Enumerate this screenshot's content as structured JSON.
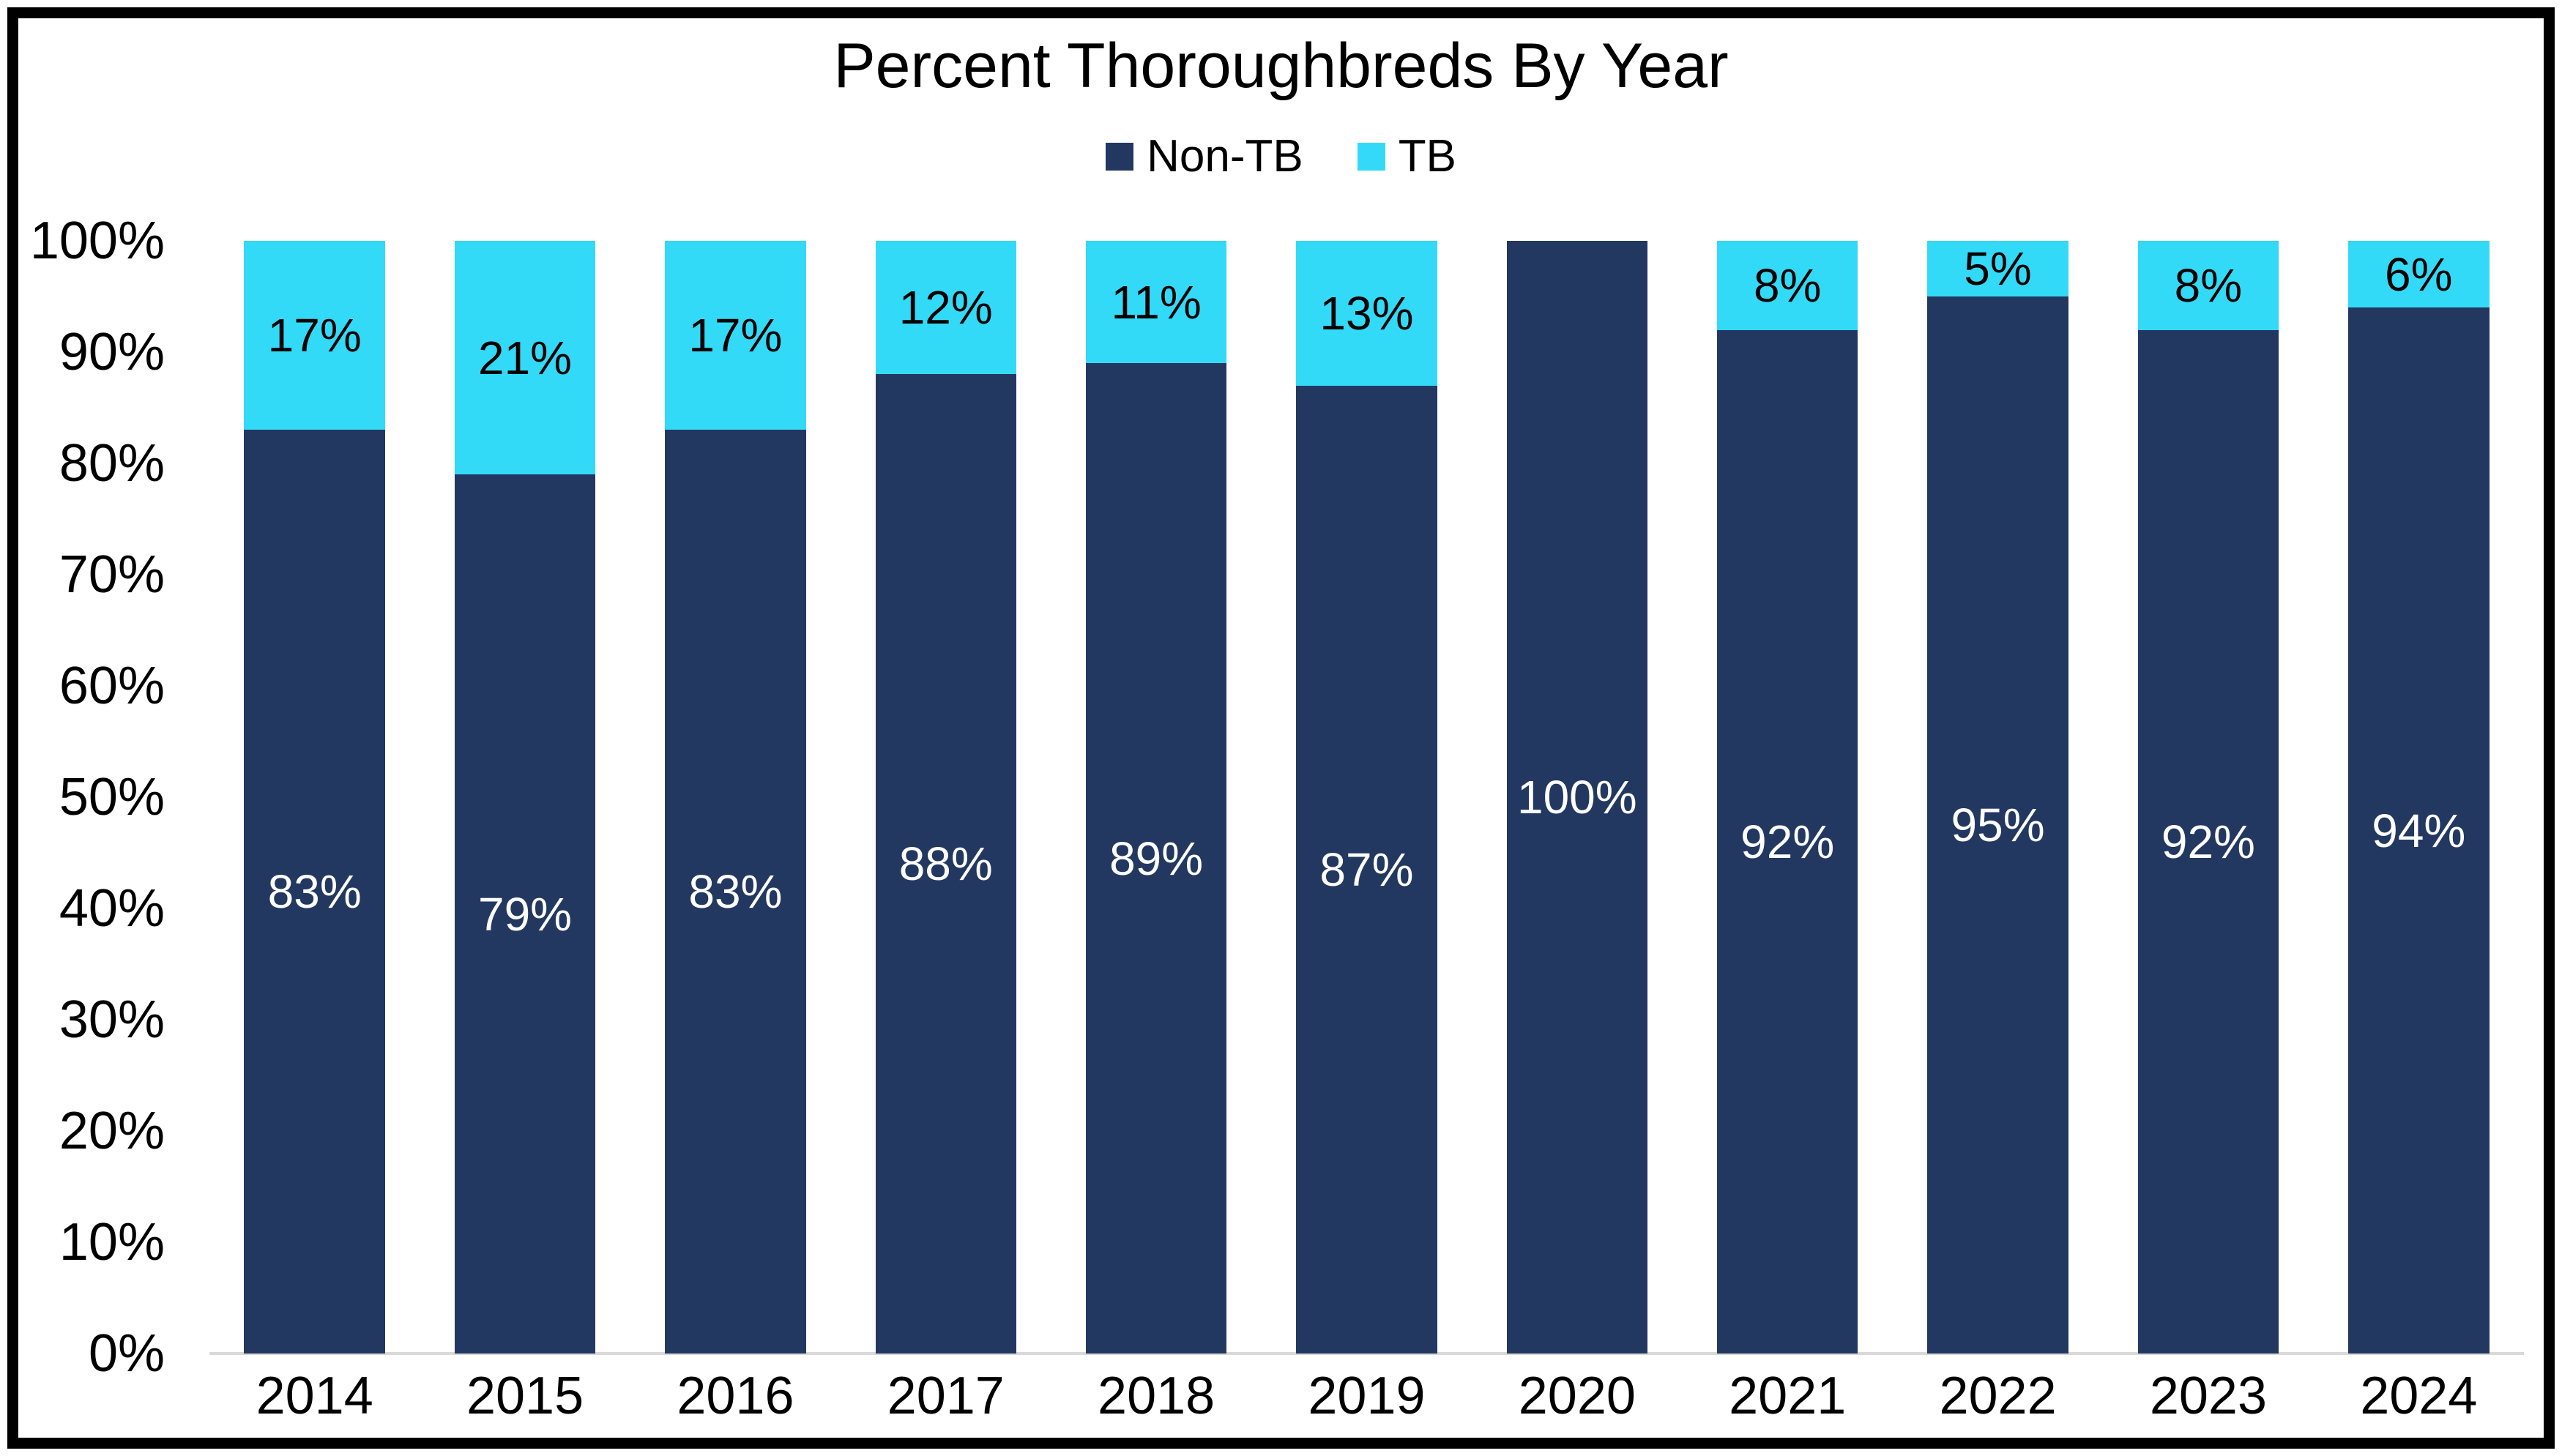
{
  "chart_data": {
    "type": "bar",
    "stacked": true,
    "title": "Percent Thoroughbreds By Year",
    "categories": [
      "2014",
      "2015",
      "2016",
      "2017",
      "2018",
      "2019",
      "2020",
      "2021",
      "2022",
      "2023",
      "2024"
    ],
    "series": [
      {
        "name": "Non-TB",
        "color": "#233860",
        "label_color": "#ffffff",
        "values": [
          83,
          79,
          83,
          88,
          89,
          87,
          100,
          92,
          95,
          92,
          94
        ],
        "labels": [
          "83%",
          "79%",
          "83%",
          "88%",
          "89%",
          "87%",
          "100%",
          "92%",
          "95%",
          "92%",
          "94%"
        ]
      },
      {
        "name": "TB",
        "color": "#33daf7",
        "label_color": "#000000",
        "values": [
          17,
          21,
          17,
          12,
          11,
          13,
          0,
          8,
          5,
          8,
          6
        ],
        "labels": [
          "17%",
          "21%",
          "17%",
          "12%",
          "11%",
          "13%",
          "",
          "8%",
          "5%",
          "8%",
          "6%"
        ]
      }
    ],
    "y_axis": {
      "ticks": [
        "100%",
        "90%",
        "80%",
        "70%",
        "60%",
        "50%",
        "40%",
        "30%",
        "20%",
        "10%",
        "0%"
      ],
      "min": 0,
      "max": 100
    },
    "legend_position": "top",
    "grid": false,
    "axis_line_color": "#d9d9d9"
  }
}
